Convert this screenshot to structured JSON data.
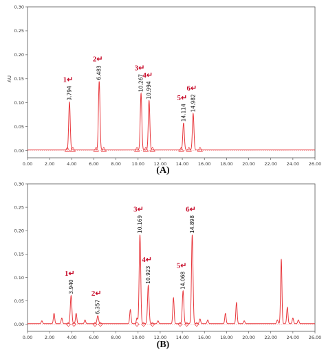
{
  "chart_data": [
    {
      "id": "A",
      "type": "line",
      "caption": "(A)",
      "ylabel": "AU",
      "xlim": [
        0,
        26
      ],
      "ylim": [
        -0.015,
        0.3
      ],
      "x_ticks": [
        "0.00",
        "2.00",
        "4.00",
        "6.00",
        "8.00",
        "10.00",
        "12.00",
        "14.00",
        "16.00",
        "18.00",
        "20.00",
        "22.00",
        "24.00",
        "26.00"
      ],
      "y_ticks": [
        "0.00",
        "0.05",
        "0.10",
        "0.15",
        "0.20",
        "0.25",
        "0.30"
      ],
      "line_color": "#e8383d",
      "peaks": [
        {
          "number": "1↵",
          "label": "3.794",
          "x": 3.794,
          "y": 0.1
        },
        {
          "number": "2↵",
          "label": "6.483",
          "x": 6.483,
          "y": 0.143
        },
        {
          "number": "3↵",
          "label": "10.267",
          "x": 10.267,
          "y": 0.118
        },
        {
          "number": "4↵",
          "label": "10.994",
          "x": 10.994,
          "y": 0.103
        },
        {
          "number": "5↵",
          "label": "14.114",
          "x": 14.114,
          "y": 0.056
        },
        {
          "number": "6↵",
          "label": "14.982",
          "x": 14.982,
          "y": 0.076
        }
      ],
      "minor_peaks": [],
      "baseline_markers": [
        3.6,
        4.1,
        6.2,
        6.9,
        9.9,
        10.7,
        11.3,
        13.9,
        14.6,
        15.6
      ],
      "marker_shape": "triangle"
    },
    {
      "id": "B",
      "type": "line",
      "caption": "(B)",
      "ylabel": "",
      "xlim": [
        0,
        26
      ],
      "ylim": [
        -0.015,
        0.3
      ],
      "x_ticks": [
        "0.00",
        "2.00",
        "4.00",
        "6.00",
        "8.00",
        "10.00",
        "12.00",
        "14.00",
        "16.00",
        "18.00",
        "20.00",
        "22.00",
        "24.00",
        "26.00"
      ],
      "y_ticks": [
        "0.00",
        "0.05",
        "0.10",
        "0.15",
        "0.20",
        "0.25",
        "0.30"
      ],
      "line_color": "#e8383d",
      "peaks": [
        {
          "number": "1↵",
          "label": "3.940",
          "x": 3.94,
          "y": 0.06
        },
        {
          "number": "2↵",
          "label": "6.357",
          "x": 6.357,
          "y": 0.017
        },
        {
          "number": "3↵",
          "label": "10.169",
          "x": 10.169,
          "y": 0.19
        },
        {
          "number": "4↵",
          "label": "10.923",
          "x": 10.923,
          "y": 0.082
        },
        {
          "number": "5↵",
          "label": "14.068",
          "x": 14.068,
          "y": 0.07
        },
        {
          "number": "6↵",
          "label": "14.898",
          "x": 14.898,
          "y": 0.19
        }
      ],
      "minor_peaks": [
        {
          "x": 1.3,
          "y": 0.006
        },
        {
          "x": 2.4,
          "y": 0.022
        },
        {
          "x": 3.1,
          "y": 0.012
        },
        {
          "x": 4.4,
          "y": 0.022
        },
        {
          "x": 5.2,
          "y": 0.008
        },
        {
          "x": 9.3,
          "y": 0.03
        },
        {
          "x": 9.9,
          "y": 0.012
        },
        {
          "x": 11.8,
          "y": 0.006
        },
        {
          "x": 13.2,
          "y": 0.055
        },
        {
          "x": 15.6,
          "y": 0.01
        },
        {
          "x": 16.3,
          "y": 0.008
        },
        {
          "x": 17.9,
          "y": 0.022
        },
        {
          "x": 18.9,
          "y": 0.045
        },
        {
          "x": 19.6,
          "y": 0.006
        },
        {
          "x": 22.6,
          "y": 0.008
        },
        {
          "x": 22.95,
          "y": 0.138
        },
        {
          "x": 23.5,
          "y": 0.035
        },
        {
          "x": 24.0,
          "y": 0.012
        },
        {
          "x": 24.5,
          "y": 0.008
        }
      ],
      "baseline_markers": [
        3.7,
        4.2,
        6.1,
        6.6,
        9.9,
        10.5,
        11.3,
        13.8,
        14.4,
        15.3
      ],
      "marker_shape": "diamond"
    }
  ]
}
